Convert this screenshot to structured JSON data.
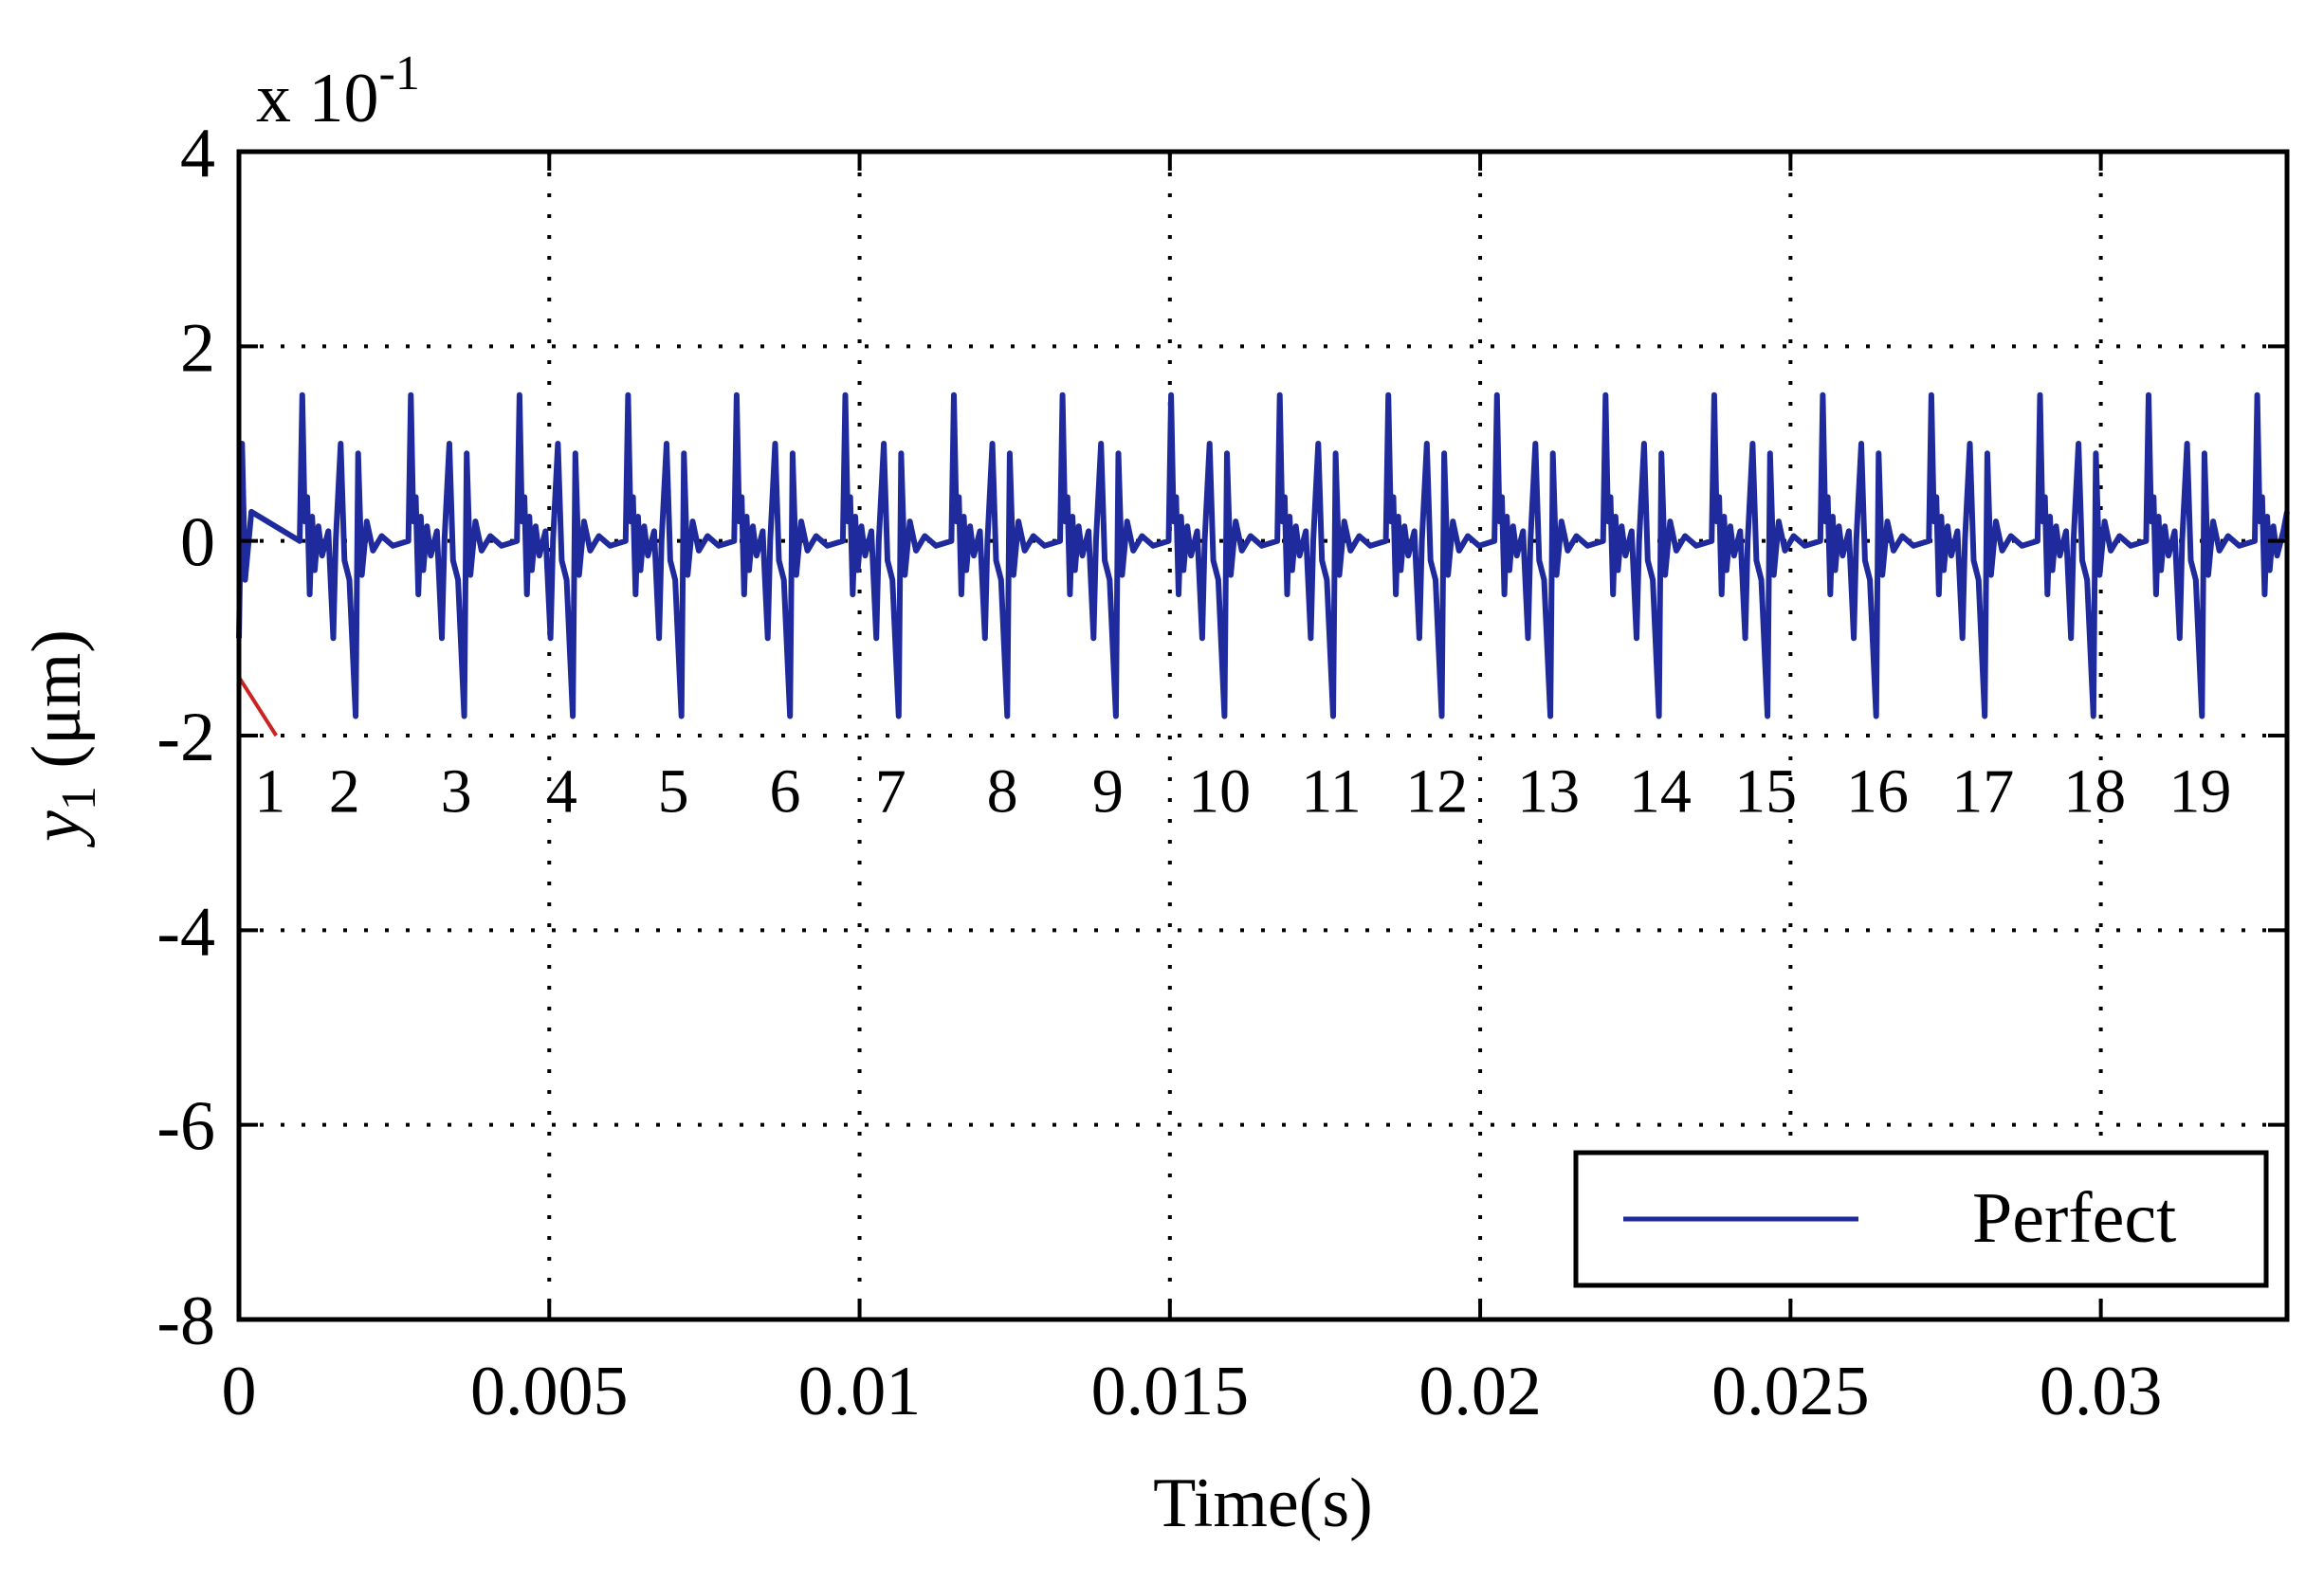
{
  "chart_data": {
    "type": "line",
    "xlabel": "Time(s)",
    "ylabel": "y",
    "ylabel_subscript": "1",
    "ylabel_unit": " (μm)",
    "exponent_label": "x 10",
    "exponent_power": "-1",
    "xlim": [
      0,
      0.033
    ],
    "ylim": [
      -8,
      4
    ],
    "y_scale_factor": 0.1,
    "grid": true,
    "grid_style": "dotted",
    "x_ticks": [
      0,
      0.005,
      0.01,
      0.015,
      0.02,
      0.025,
      0.03
    ],
    "x_tick_labels": [
      "0",
      "0.005",
      "0.01",
      "0.015",
      "0.02",
      "0.025",
      "0.03"
    ],
    "y_ticks": [
      4,
      2,
      0,
      -2,
      -4,
      -6,
      -8
    ],
    "y_tick_labels": [
      "4",
      "2",
      "0",
      "-2",
      "-4",
      "-6",
      "-8"
    ],
    "legend": {
      "position": "bottom-right",
      "entries": [
        {
          "label": "Perfect",
          "color": "#1f2a9c"
        }
      ]
    },
    "series": [
      {
        "name": "Perfect",
        "color": "#1f2a9c",
        "description_free": true,
        "pulse_peak_max": 1.5,
        "pulse_peak_min": -1.8,
        "pulse_period_s": 0.00175,
        "pulse_count": 19,
        "baseline": 0
      }
    ],
    "annotations": {
      "labels": [
        "1",
        "2",
        "3",
        "4",
        "5",
        "6",
        "7",
        "8",
        "9",
        "10",
        "11",
        "12",
        "13",
        "14",
        "15",
        "16",
        "17",
        "18",
        "19"
      ],
      "times": [
        0.0005,
        0.0017,
        0.0035,
        0.0052,
        0.007,
        0.0088,
        0.0105,
        0.0123,
        0.014,
        0.0158,
        0.0176,
        0.0193,
        0.0211,
        0.0229,
        0.0246,
        0.0264,
        0.0281,
        0.0299,
        0.0316
      ],
      "y": -2.55,
      "marker_color": "#cc2222"
    }
  }
}
